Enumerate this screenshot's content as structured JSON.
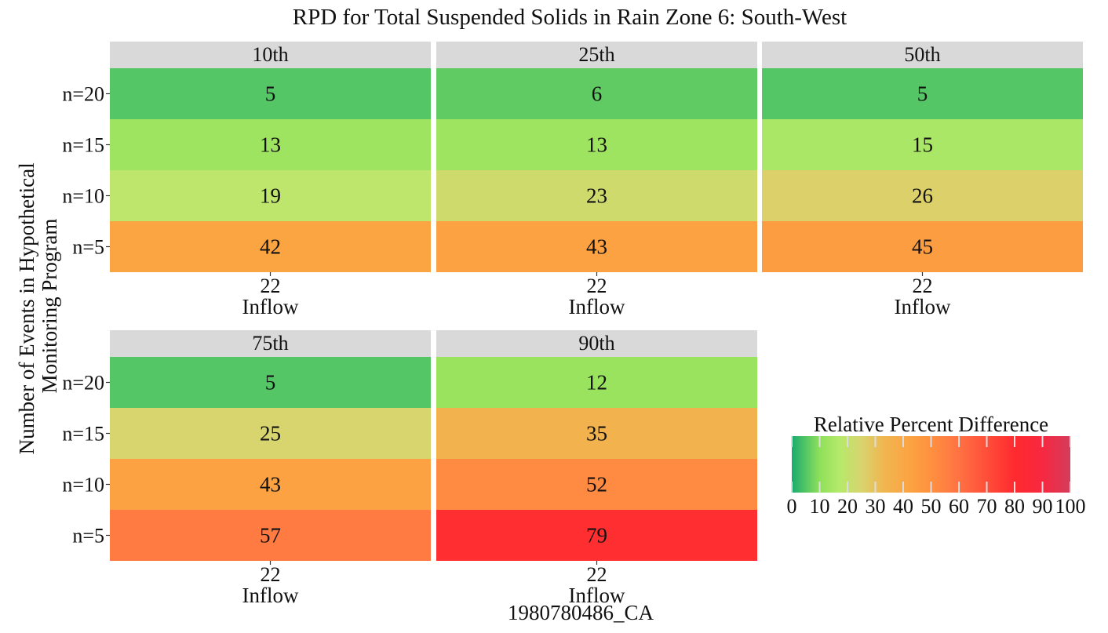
{
  "chart_data": {
    "type": "heatmap",
    "title": "RPD for Total Suspended Solids in Rain Zone 6: South-West",
    "xlabel": "1980780486_CA",
    "ylabel_lines": [
      "Number of Events in Hypothetical",
      "Monitoring Program"
    ],
    "rows": [
      "n=20",
      "n=15",
      "n=10",
      "n=5"
    ],
    "x_tick": "22",
    "x_sublabel": "Inflow",
    "facets": [
      {
        "label": "10th",
        "values": [
          5,
          13,
          19,
          42
        ]
      },
      {
        "label": "25th",
        "values": [
          6,
          13,
          23,
          43
        ]
      },
      {
        "label": "50th",
        "values": [
          5,
          15,
          26,
          45
        ]
      },
      {
        "label": "75th",
        "values": [
          5,
          25,
          43,
          57
        ]
      },
      {
        "label": "90th",
        "values": [
          12,
          35,
          52,
          79
        ]
      }
    ],
    "legend": {
      "title": "Relative Percent Difference",
      "ticks": [
        0,
        10,
        20,
        30,
        40,
        50,
        60,
        70,
        80,
        90,
        100
      ],
      "range": [
        0,
        100
      ],
      "colors": [
        {
          "v": 0,
          "c": "#1aab6f"
        },
        {
          "v": 10,
          "c": "#8ee05a"
        },
        {
          "v": 17,
          "c": "#b5ea6b"
        },
        {
          "v": 25,
          "c": "#d8d46e"
        },
        {
          "v": 33,
          "c": "#f0b650"
        },
        {
          "v": 42,
          "c": "#fba442"
        },
        {
          "v": 50,
          "c": "#ff9040"
        },
        {
          "v": 60,
          "c": "#ff7243"
        },
        {
          "v": 80,
          "c": "#ff2a2f"
        },
        {
          "v": 90,
          "c": "#f72840"
        },
        {
          "v": 100,
          "c": "#d43c5c"
        }
      ]
    }
  }
}
